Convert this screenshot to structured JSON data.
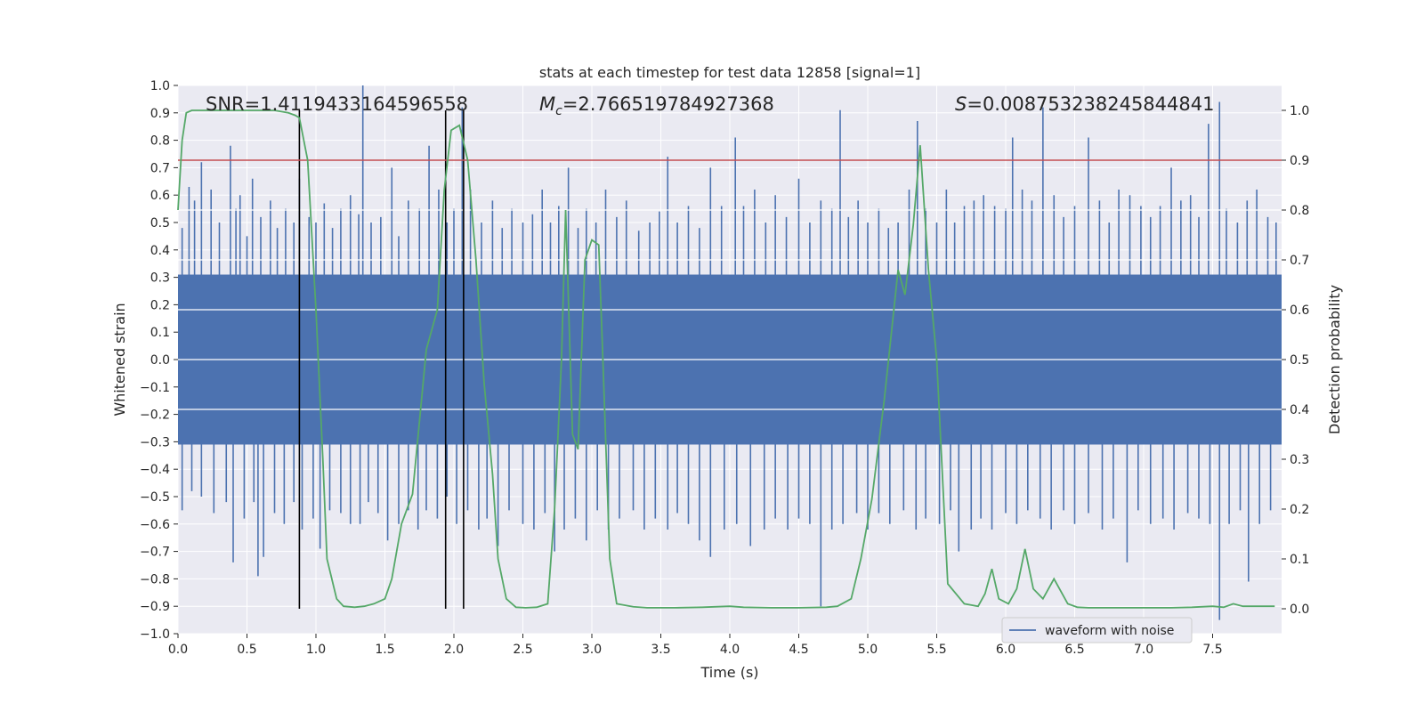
{
  "chart_data": {
    "type": "line",
    "title": "stats at each timestep for test data 12858 [signal=1]",
    "xlabel": "Time (s)",
    "ylabel_left": "Whitened strain",
    "ylabel_right": "Detection probability",
    "xlim": [
      0,
      8
    ],
    "ylim_left": [
      -1.0,
      1.0
    ],
    "ylim_right": [
      -0.05,
      1.05
    ],
    "xticks": [
      "0.0",
      "0.5",
      "1.0",
      "1.5",
      "2.0",
      "2.5",
      "3.0",
      "3.5",
      "4.0",
      "4.5",
      "5.0",
      "5.5",
      "6.0",
      "6.5",
      "7.0",
      "7.5"
    ],
    "yticks_left": [
      "1.0",
      "0.9",
      "0.8",
      "0.7",
      "0.6",
      "0.5",
      "0.4",
      "0.3",
      "0.2",
      "0.1",
      "0.0",
      "-0.1",
      "-0.2",
      "-0.3",
      "-0.4",
      "-0.5",
      "-0.6",
      "-0.7",
      "-0.8",
      "-0.9",
      "-1.0"
    ],
    "yticks_right": [
      "1.0",
      "0.9",
      "0.8",
      "0.7",
      "0.6",
      "0.5",
      "0.4",
      "0.3",
      "0.2",
      "0.1",
      "0.0"
    ],
    "grid": true,
    "legend_position": "bottom-right",
    "colors": {
      "background": "#eaeaf2",
      "waveform": "#4c72b0",
      "probability": "#55a868",
      "threshold": "#c44e52",
      "marker": "#000000"
    },
    "annotations": {
      "snr": "SNR=1.4119433164596558",
      "mc_symbol": "M",
      "mc_sub": "c",
      "mc_value": "=2.766519784927368",
      "s_symbol": "S",
      "s_value": "=0.008753238245844841"
    },
    "threshold_probability": 0.9,
    "vertical_markers": [
      0.88,
      1.94,
      2.07
    ],
    "waveform": {
      "name": "waveform with noise",
      "band_lower": -0.31,
      "band_upper": 0.31,
      "spikes_up": [
        [
          0.03,
          0.48
        ],
        [
          0.08,
          0.63
        ],
        [
          0.12,
          0.58
        ],
        [
          0.17,
          0.72
        ],
        [
          0.24,
          0.62
        ],
        [
          0.3,
          0.5
        ],
        [
          0.38,
          0.78
        ],
        [
          0.42,
          0.55
        ],
        [
          0.45,
          0.6
        ],
        [
          0.5,
          0.45
        ],
        [
          0.54,
          0.66
        ],
        [
          0.6,
          0.52
        ],
        [
          0.67,
          0.58
        ],
        [
          0.72,
          0.48
        ],
        [
          0.78,
          0.55
        ],
        [
          0.84,
          0.5
        ],
        [
          0.88,
          0.66
        ],
        [
          0.95,
          0.52
        ],
        [
          1.0,
          0.5
        ],
        [
          1.06,
          0.57
        ],
        [
          1.12,
          0.48
        ],
        [
          1.18,
          0.55
        ],
        [
          1.25,
          0.6
        ],
        [
          1.31,
          0.53
        ],
        [
          1.34,
          1.0
        ],
        [
          1.4,
          0.5
        ],
        [
          1.47,
          0.52
        ],
        [
          1.55,
          0.7
        ],
        [
          1.6,
          0.45
        ],
        [
          1.67,
          0.58
        ],
        [
          1.75,
          0.55
        ],
        [
          1.82,
          0.78
        ],
        [
          1.89,
          0.62
        ],
        [
          1.95,
          0.5
        ],
        [
          2.0,
          0.55
        ],
        [
          2.06,
          0.92
        ],
        [
          2.12,
          0.62
        ],
        [
          2.2,
          0.5
        ],
        [
          2.28,
          0.58
        ],
        [
          2.35,
          0.48
        ],
        [
          2.42,
          0.55
        ],
        [
          2.5,
          0.5
        ],
        [
          2.57,
          0.53
        ],
        [
          2.64,
          0.62
        ],
        [
          2.7,
          0.5
        ],
        [
          2.76,
          0.56
        ],
        [
          2.83,
          0.7
        ],
        [
          2.9,
          0.48
        ],
        [
          2.96,
          0.55
        ],
        [
          3.03,
          0.5
        ],
        [
          3.1,
          0.62
        ],
        [
          3.18,
          0.52
        ],
        [
          3.25,
          0.58
        ],
        [
          3.34,
          0.47
        ],
        [
          3.42,
          0.5
        ],
        [
          3.49,
          0.54
        ],
        [
          3.55,
          0.74
        ],
        [
          3.62,
          0.5
        ],
        [
          3.7,
          0.56
        ],
        [
          3.78,
          0.48
        ],
        [
          3.86,
          0.7
        ],
        [
          3.94,
          0.56
        ],
        [
          4.04,
          0.81
        ],
        [
          4.1,
          0.56
        ],
        [
          4.18,
          0.62
        ],
        [
          4.26,
          0.5
        ],
        [
          4.33,
          0.6
        ],
        [
          4.41,
          0.52
        ],
        [
          4.5,
          0.66
        ],
        [
          4.58,
          0.5
        ],
        [
          4.66,
          0.58
        ],
        [
          4.74,
          0.55
        ],
        [
          4.8,
          0.91
        ],
        [
          4.86,
          0.52
        ],
        [
          4.93,
          0.58
        ],
        [
          5.0,
          0.5
        ],
        [
          5.08,
          0.55
        ],
        [
          5.15,
          0.48
        ],
        [
          5.22,
          0.5
        ],
        [
          5.3,
          0.62
        ],
        [
          5.36,
          0.87
        ],
        [
          5.42,
          0.55
        ],
        [
          5.5,
          0.5
        ],
        [
          5.57,
          0.62
        ],
        [
          5.63,
          0.5
        ],
        [
          5.7,
          0.56
        ],
        [
          5.77,
          0.58
        ],
        [
          5.84,
          0.6
        ],
        [
          5.92,
          0.56
        ],
        [
          6.0,
          0.55
        ],
        [
          6.05,
          0.81
        ],
        [
          6.12,
          0.62
        ],
        [
          6.19,
          0.58
        ],
        [
          6.27,
          0.92
        ],
        [
          6.35,
          0.6
        ],
        [
          6.42,
          0.52
        ],
        [
          6.5,
          0.56
        ],
        [
          6.6,
          0.81
        ],
        [
          6.68,
          0.58
        ],
        [
          6.75,
          0.5
        ],
        [
          6.82,
          0.62
        ],
        [
          6.9,
          0.6
        ],
        [
          6.98,
          0.56
        ],
        [
          7.05,
          0.52
        ],
        [
          7.12,
          0.56
        ],
        [
          7.2,
          0.7
        ],
        [
          7.27,
          0.58
        ],
        [
          7.34,
          0.6
        ],
        [
          7.4,
          0.52
        ],
        [
          7.47,
          0.86
        ],
        [
          7.55,
          0.94
        ],
        [
          7.6,
          0.55
        ],
        [
          7.68,
          0.5
        ],
        [
          7.75,
          0.58
        ],
        [
          7.82,
          0.62
        ],
        [
          7.9,
          0.52
        ],
        [
          7.96,
          0.5
        ]
      ],
      "spikes_down": [
        [
          0.03,
          -0.55
        ],
        [
          0.1,
          -0.48
        ],
        [
          0.17,
          -0.5
        ],
        [
          0.26,
          -0.56
        ],
        [
          0.35,
          -0.52
        ],
        [
          0.4,
          -0.74
        ],
        [
          0.48,
          -0.58
        ],
        [
          0.55,
          -0.52
        ],
        [
          0.58,
          -0.79
        ],
        [
          0.62,
          -0.72
        ],
        [
          0.7,
          -0.56
        ],
        [
          0.77,
          -0.6
        ],
        [
          0.84,
          -0.52
        ],
        [
          0.9,
          -0.62
        ],
        [
          0.98,
          -0.58
        ],
        [
          1.03,
          -0.69
        ],
        [
          1.1,
          -0.55
        ],
        [
          1.18,
          -0.56
        ],
        [
          1.25,
          -0.6
        ],
        [
          1.32,
          -0.6
        ],
        [
          1.38,
          -0.52
        ],
        [
          1.45,
          -0.56
        ],
        [
          1.52,
          -0.66
        ],
        [
          1.6,
          -0.6
        ],
        [
          1.67,
          -0.55
        ],
        [
          1.74,
          -0.62
        ],
        [
          1.8,
          -0.55
        ],
        [
          1.88,
          -0.58
        ],
        [
          1.95,
          -0.5
        ],
        [
          2.02,
          -0.6
        ],
        [
          2.1,
          -0.55
        ],
        [
          2.18,
          -0.62
        ],
        [
          2.24,
          -0.58
        ],
        [
          2.32,
          -0.68
        ],
        [
          2.4,
          -0.55
        ],
        [
          2.5,
          -0.6
        ],
        [
          2.58,
          -0.62
        ],
        [
          2.66,
          -0.56
        ],
        [
          2.73,
          -0.7
        ],
        [
          2.8,
          -0.62
        ],
        [
          2.88,
          -0.58
        ],
        [
          2.96,
          -0.66
        ],
        [
          3.04,
          -0.55
        ],
        [
          3.12,
          -0.62
        ],
        [
          3.2,
          -0.58
        ],
        [
          3.3,
          -0.55
        ],
        [
          3.38,
          -0.62
        ],
        [
          3.46,
          -0.58
        ],
        [
          3.55,
          -0.62
        ],
        [
          3.62,
          -0.56
        ],
        [
          3.7,
          -0.6
        ],
        [
          3.78,
          -0.66
        ],
        [
          3.86,
          -0.72
        ],
        [
          3.96,
          -0.62
        ],
        [
          4.05,
          -0.6
        ],
        [
          4.15,
          -0.68
        ],
        [
          4.25,
          -0.62
        ],
        [
          4.33,
          -0.58
        ],
        [
          4.42,
          -0.62
        ],
        [
          4.5,
          -0.58
        ],
        [
          4.58,
          -0.6
        ],
        [
          4.66,
          -0.9
        ],
        [
          4.74,
          -0.62
        ],
        [
          4.82,
          -0.6
        ],
        [
          4.92,
          -0.56
        ],
        [
          5.0,
          -0.62
        ],
        [
          5.08,
          -0.56
        ],
        [
          5.16,
          -0.6
        ],
        [
          5.26,
          -0.55
        ],
        [
          5.35,
          -0.62
        ],
        [
          5.42,
          -0.58
        ],
        [
          5.52,
          -0.6
        ],
        [
          5.6,
          -0.55
        ],
        [
          5.66,
          -0.7
        ],
        [
          5.75,
          -0.62
        ],
        [
          5.82,
          -0.58
        ],
        [
          5.9,
          -0.62
        ],
        [
          6.0,
          -0.56
        ],
        [
          6.08,
          -0.6
        ],
        [
          6.16,
          -0.55
        ],
        [
          6.25,
          -0.58
        ],
        [
          6.33,
          -0.62
        ],
        [
          6.42,
          -0.55
        ],
        [
          6.5,
          -0.6
        ],
        [
          6.6,
          -0.56
        ],
        [
          6.7,
          -0.62
        ],
        [
          6.78,
          -0.58
        ],
        [
          6.88,
          -0.74
        ],
        [
          6.96,
          -0.55
        ],
        [
          7.05,
          -0.6
        ],
        [
          7.14,
          -0.58
        ],
        [
          7.22,
          -0.62
        ],
        [
          7.32,
          -0.56
        ],
        [
          7.4,
          -0.58
        ],
        [
          7.48,
          -0.6
        ],
        [
          7.55,
          -0.95
        ],
        [
          7.62,
          -0.6
        ],
        [
          7.7,
          -0.55
        ],
        [
          7.76,
          -0.81
        ],
        [
          7.84,
          -0.6
        ],
        [
          7.92,
          -0.55
        ]
      ]
    },
    "probability": {
      "name": "Detection probability",
      "x": [
        0.0,
        0.03,
        0.06,
        0.1,
        0.2,
        0.3,
        0.4,
        0.5,
        0.6,
        0.7,
        0.8,
        0.85,
        0.88,
        0.94,
        1.0,
        1.05,
        1.08,
        1.15,
        1.2,
        1.28,
        1.35,
        1.42,
        1.5,
        1.55,
        1.62,
        1.7,
        1.8,
        1.88,
        1.93,
        1.98,
        2.04,
        2.1,
        2.16,
        2.22,
        2.28,
        2.32,
        2.38,
        2.45,
        2.52,
        2.6,
        2.68,
        2.73,
        2.78,
        2.81,
        2.86,
        2.9,
        2.95,
        3.0,
        3.05,
        3.08,
        3.13,
        3.18,
        3.3,
        3.4,
        3.6,
        3.8,
        4.0,
        4.1,
        4.3,
        4.5,
        4.7,
        4.78,
        4.88,
        4.95,
        5.03,
        5.12,
        5.22,
        5.27,
        5.33,
        5.38,
        5.44,
        5.5,
        5.58,
        5.7,
        5.8,
        5.85,
        5.9,
        5.95,
        6.02,
        6.08,
        6.14,
        6.2,
        6.27,
        6.35,
        6.45,
        6.52,
        6.6,
        6.7,
        6.8,
        7.0,
        7.2,
        7.35,
        7.5,
        7.58,
        7.65,
        7.72,
        7.8,
        7.88,
        7.95
      ],
      "values": [
        0.8,
        0.94,
        0.995,
        1.0,
        1.0,
        1.0,
        1.0,
        1.0,
        1.0,
        1.0,
        0.995,
        0.99,
        0.985,
        0.9,
        0.6,
        0.3,
        0.1,
        0.02,
        0.005,
        0.003,
        0.005,
        0.01,
        0.02,
        0.06,
        0.17,
        0.23,
        0.52,
        0.6,
        0.84,
        0.96,
        0.97,
        0.9,
        0.7,
        0.45,
        0.27,
        0.1,
        0.02,
        0.003,
        0.002,
        0.003,
        0.01,
        0.2,
        0.5,
        0.8,
        0.35,
        0.32,
        0.7,
        0.74,
        0.73,
        0.5,
        0.1,
        0.01,
        0.004,
        0.002,
        0.002,
        0.003,
        0.005,
        0.003,
        0.002,
        0.002,
        0.003,
        0.005,
        0.02,
        0.1,
        0.22,
        0.42,
        0.68,
        0.63,
        0.77,
        0.93,
        0.68,
        0.5,
        0.05,
        0.01,
        0.005,
        0.03,
        0.08,
        0.02,
        0.01,
        0.04,
        0.12,
        0.04,
        0.02,
        0.06,
        0.01,
        0.003,
        0.002,
        0.002,
        0.002,
        0.002,
        0.002,
        0.003,
        0.005,
        0.003,
        0.01,
        0.005,
        0.005,
        0.005,
        0.005
      ]
    }
  }
}
